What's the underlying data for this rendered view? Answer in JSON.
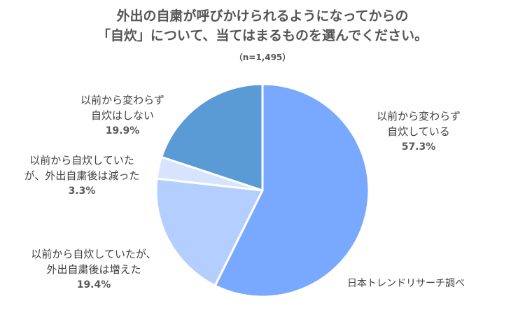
{
  "title_line1": "外出の自粛が呼びかけられるようになってからの",
  "title_line2": "「自炊」について、当てはまるものを選んでください。",
  "subtitle": "（n=1,495）",
  "source": "日本トレンドリサーチ調べ",
  "chart_data": {
    "type": "pie",
    "title": "外出の自粛が呼びかけられるようになってからの「自炊」について、当てはまるものを選んでください。",
    "sample": "（n=1,495）",
    "slices": [
      {
        "label_lines": [
          "以前から変わらず",
          "自炊している"
        ],
        "value": 57.3,
        "value_label": "57.3%",
        "color": "#78A9FF"
      },
      {
        "label_lines": [
          "以前から自炊していたが、",
          "外出自粛後は増えた"
        ],
        "value": 19.4,
        "value_label": "19.4%",
        "color": "#B3CEFF"
      },
      {
        "label_lines": [
          "以前から自炊していた",
          "が、外出自粛後は減った"
        ],
        "value": 3.3,
        "value_label": "3.3%",
        "color": "#D6E4FF"
      },
      {
        "label_lines": [
          "以前から変わらず",
          "自炊はしない"
        ],
        "value": 19.9,
        "value_label": "19.9%",
        "color": "#5B9BD5"
      }
    ]
  }
}
